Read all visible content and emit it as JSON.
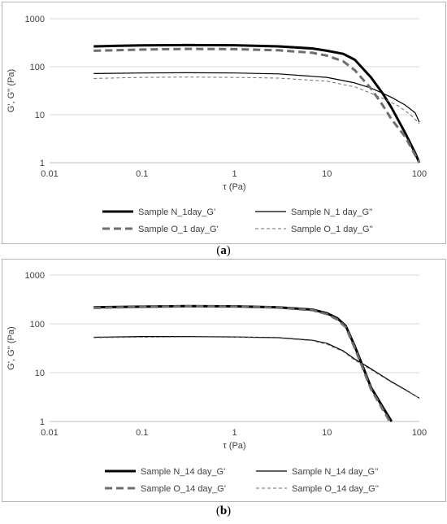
{
  "captions": {
    "a_open": "(",
    "a_letter": "a",
    "a_close": ")",
    "b_open": "(",
    "b_letter": "b",
    "b_close": ")"
  },
  "chart_data": [
    {
      "id": "a",
      "type": "line",
      "title": "",
      "xlabel": "τ (Pa)",
      "ylabel": "G', G'' (Pa)",
      "xscale": "log",
      "yscale": "log",
      "xlim": [
        0.01,
        100
      ],
      "ylim": [
        1,
        1000
      ],
      "xticks": [
        "0.01",
        "0.1",
        "1",
        "10",
        "100"
      ],
      "yticks": [
        "1",
        "10",
        "100",
        "1000"
      ],
      "grid": "horizontal",
      "legend": "bottom",
      "series": [
        {
          "name": "Sample N_1day_G'",
          "style": "thick-solid",
          "x": [
            0.03,
            0.05,
            0.1,
            0.3,
            1,
            3,
            7,
            10,
            15,
            20,
            30,
            40,
            50,
            70,
            90,
            100
          ],
          "y": [
            265,
            272,
            278,
            282,
            280,
            265,
            240,
            215,
            185,
            140,
            60,
            28,
            14,
            4.2,
            1.6,
            1
          ]
        },
        {
          "name": "Sample N_1 day_G''",
          "style": "thin-solid",
          "x": [
            0.03,
            0.1,
            0.3,
            1,
            3,
            10,
            20,
            30,
            40,
            50,
            70,
            90,
            100
          ],
          "y": [
            72,
            74,
            75,
            74,
            71,
            60,
            46,
            36,
            28,
            23,
            16,
            11,
            7
          ]
        },
        {
          "name": "Sample O_1 day_G'",
          "style": "thick-dash",
          "x": [
            0.03,
            0.1,
            0.3,
            1,
            3,
            7,
            10,
            15,
            20,
            30,
            40,
            50,
            70,
            100
          ],
          "y": [
            215,
            228,
            235,
            232,
            220,
            195,
            170,
            130,
            85,
            35,
            16,
            8,
            3.5,
            1
          ]
        },
        {
          "name": "Sample O_1 day_G''",
          "style": "thin-dash",
          "x": [
            0.03,
            0.1,
            0.3,
            1,
            3,
            10,
            20,
            30,
            40,
            60,
            80,
            100
          ],
          "y": [
            57,
            60,
            61,
            60,
            58,
            50,
            38,
            28,
            22,
            15,
            10,
            6.5
          ]
        }
      ]
    },
    {
      "id": "b",
      "type": "line",
      "title": "",
      "xlabel": "τ (Pa)",
      "ylabel": "G', G'' (Pa)",
      "xscale": "log",
      "yscale": "log",
      "xlim": [
        0.01,
        100
      ],
      "ylim": [
        1,
        1000
      ],
      "xticks": [
        "0.01",
        "0.1",
        "1",
        "10",
        "100"
      ],
      "yticks": [
        "1",
        "10",
        "100",
        "1000"
      ],
      "grid": "horizontal",
      "legend": "bottom",
      "series": [
        {
          "name": "Sample N_14 day_G'",
          "style": "thick-solid",
          "x": [
            0.03,
            0.1,
            0.3,
            1,
            3,
            7,
            10,
            13,
            16,
            20,
            25,
            30,
            40,
            50
          ],
          "y": [
            218,
            225,
            230,
            228,
            218,
            195,
            165,
            130,
            90,
            35,
            12,
            5,
            2,
            1
          ]
        },
        {
          "name": "Sample N_14 day_G''",
          "style": "thin-solid",
          "x": [
            0.03,
            0.1,
            0.3,
            1,
            3,
            7,
            10,
            15,
            20,
            30,
            50,
            70,
            100
          ],
          "y": [
            53,
            55,
            55,
            54,
            52,
            46,
            40,
            28,
            19,
            12,
            6.5,
            4.5,
            3
          ]
        },
        {
          "name": "Sample O_14 day_G'",
          "style": "thick-dash",
          "x": [
            0.03,
            0.1,
            0.3,
            1,
            3,
            7,
            10,
            13,
            16,
            20,
            25,
            30,
            40,
            48
          ],
          "y": [
            212,
            222,
            228,
            226,
            215,
            190,
            158,
            122,
            85,
            32,
            11,
            4.6,
            1.8,
            1
          ]
        },
        {
          "name": "Sample O_14 day_G''",
          "style": "thin-dash",
          "x": [
            0.03,
            0.1,
            0.3,
            1,
            3,
            7,
            10,
            15,
            20,
            30,
            50,
            70,
            100
          ],
          "y": [
            52,
            53,
            54,
            53,
            51,
            45,
            38,
            27,
            18,
            11.5,
            6.3,
            4.4,
            3
          ]
        }
      ]
    }
  ]
}
